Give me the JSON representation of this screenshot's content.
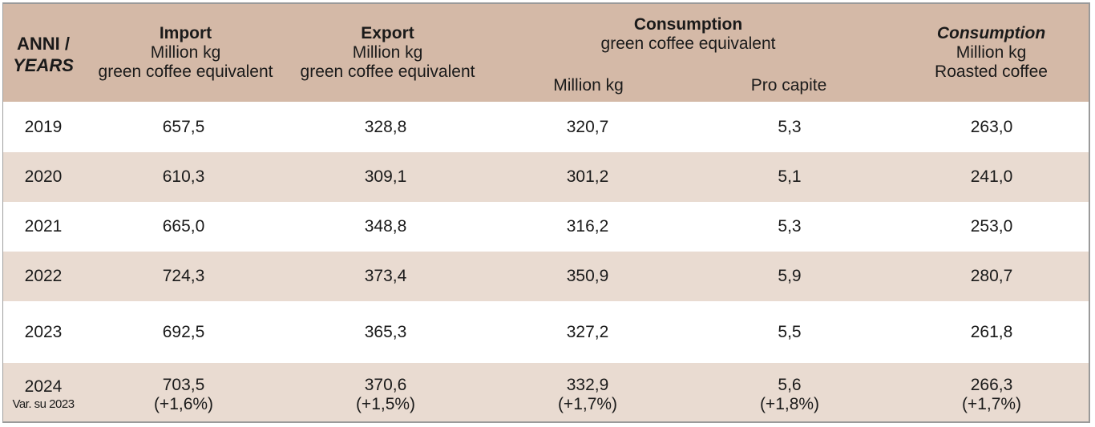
{
  "colors": {
    "header_bg": "#d4b9a7",
    "alt_row_bg": "#e9dbd1",
    "row_bg": "#ffffff",
    "border": "#9a9a9a"
  },
  "header": {
    "years": {
      "line1": "ANNI /",
      "line2": "YEARS"
    },
    "import": {
      "title": "Import",
      "unit": "Million kg",
      "desc": "green coffee equivalent"
    },
    "export": {
      "title": "Export",
      "unit": "Million kg",
      "desc": "green coffee equivalent"
    },
    "consumption_green": {
      "title": "Consumption",
      "desc": "green coffee equivalent",
      "sub_million": "Million kg",
      "sub_pro_capite": "Pro capite"
    },
    "consumption_roasted": {
      "title": "Consumption",
      "unit": "Million kg",
      "desc": "Roasted coffee"
    }
  },
  "rows": [
    {
      "year": "2019",
      "import": "657,5",
      "export": "328,8",
      "cons_mkg": "320,7",
      "cons_pc": "5,3",
      "roasted": "263,0"
    },
    {
      "year": "2020",
      "import": "610,3",
      "export": "309,1",
      "cons_mkg": "301,2",
      "cons_pc": "5,1",
      "roasted": "241,0"
    },
    {
      "year": "2021",
      "import": "665,0",
      "export": "348,8",
      "cons_mkg": "316,2",
      "cons_pc": "5,3",
      "roasted": "253,0"
    },
    {
      "year": "2022",
      "import": "724,3",
      "export": "373,4",
      "cons_mkg": "350,9",
      "cons_pc": "5,9",
      "roasted": "280,7"
    },
    {
      "year": "2023",
      "import": "692,5",
      "export": "365,3",
      "cons_mkg": "327,2",
      "cons_pc": "5,5",
      "roasted": "261,8"
    }
  ],
  "last_row": {
    "year": "2024",
    "year_note": "Var. su 2023",
    "import": "703,5",
    "import_var": "(+1,6%)",
    "export": "370,6",
    "export_var": "(+1,5%)",
    "cons_mkg": "332,9",
    "cons_mkg_var": "(+1,7%)",
    "cons_pc": "5,6",
    "cons_pc_var": "(+1,8%)",
    "roasted": "266,3",
    "roasted_var": "(+1,7%)"
  }
}
